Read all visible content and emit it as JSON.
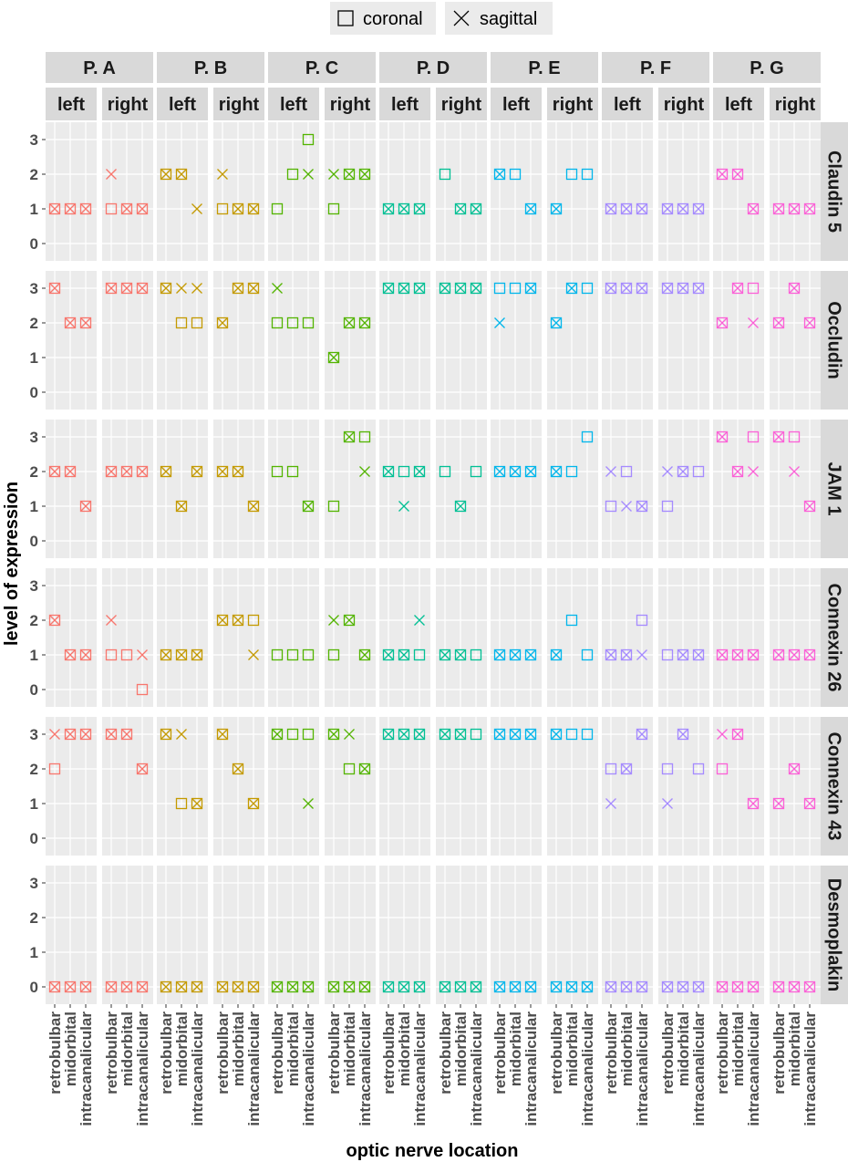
{
  "chart_data": {
    "type": "scatter",
    "xlabel": "optic nerve location",
    "ylabel": "level of expression",
    "x_categories": [
      "retrobulbar",
      "midorbital",
      "intracanalicular"
    ],
    "y_ticks": [
      "0",
      "1",
      "2",
      "3"
    ],
    "ylim": [
      -0.5,
      3.5
    ],
    "legend": {
      "position": "top",
      "items": [
        {
          "key": "coronal",
          "label": "coronal",
          "shape": "square"
        },
        {
          "key": "sagittal",
          "label": "sagittal",
          "shape": "cross"
        }
      ]
    },
    "patients": [
      {
        "label": "P. A",
        "color": "#F8766D"
      },
      {
        "label": "P. B",
        "color": "#C49A00"
      },
      {
        "label": "P. C",
        "color": "#53B400"
      },
      {
        "label": "P. D",
        "color": "#00C094"
      },
      {
        "label": "P. E",
        "color": "#00B6EB"
      },
      {
        "label": "P. F",
        "color": "#A58AFF"
      },
      {
        "label": "P. G",
        "color": "#FB61D7"
      }
    ],
    "sides": [
      "left",
      "right"
    ],
    "proteins": [
      "Claudin 5",
      "Occludin",
      "JAM 1",
      "Connexin 26",
      "Connexin 43",
      "Desmoplakin"
    ],
    "series_note": "values[patient][side] = [coronal by location, sagittal by location]; location order retrobulbar, midorbital, intracanalicular; null = no point",
    "values": {
      "Claudin 5": [
        [
          [
            [
              1,
              1,
              1
            ],
            [
              1,
              1,
              1
            ]
          ],
          [
            [
              1,
              1,
              1
            ],
            [
              2,
              1,
              1
            ]
          ]
        ],
        [
          [
            [
              2,
              2,
              null
            ],
            [
              2,
              2,
              1
            ]
          ],
          [
            [
              1,
              1,
              1
            ],
            [
              2,
              1,
              1
            ]
          ]
        ],
        [
          [
            [
              1,
              2,
              3
            ],
            [
              null,
              null,
              2
            ]
          ],
          [
            [
              1,
              2,
              2
            ],
            [
              2,
              2,
              2
            ]
          ]
        ],
        [
          [
            [
              1,
              1,
              1
            ],
            [
              1,
              1,
              1
            ]
          ],
          [
            [
              2,
              1,
              1
            ],
            [
              null,
              1,
              1
            ]
          ]
        ],
        [
          [
            [
              2,
              2,
              1
            ],
            [
              2,
              null,
              1
            ]
          ],
          [
            [
              1,
              2,
              2
            ],
            [
              1,
              null,
              null
            ]
          ]
        ],
        [
          [
            [
              1,
              1,
              1
            ],
            [
              1,
              1,
              1
            ]
          ],
          [
            [
              1,
              1,
              1
            ],
            [
              1,
              1,
              1
            ]
          ]
        ],
        [
          [
            [
              2,
              2,
              1
            ],
            [
              2,
              2,
              1
            ]
          ],
          [
            [
              1,
              1,
              1
            ],
            [
              1,
              1,
              1
            ]
          ]
        ]
      ],
      "Occludin": [
        [
          [
            [
              3,
              2,
              2
            ],
            [
              3,
              2,
              2
            ]
          ],
          [
            [
              3,
              3,
              3
            ],
            [
              3,
              3,
              3
            ]
          ]
        ],
        [
          [
            [
              3,
              2,
              2
            ],
            [
              3,
              3,
              3
            ]
          ],
          [
            [
              2,
              3,
              3
            ],
            [
              2,
              3,
              3
            ]
          ]
        ],
        [
          [
            [
              2,
              2,
              2
            ],
            [
              3,
              null,
              null
            ]
          ],
          [
            [
              1,
              2,
              2
            ],
            [
              1,
              2,
              2
            ]
          ]
        ],
        [
          [
            [
              3,
              3,
              3
            ],
            [
              3,
              3,
              3
            ]
          ],
          [
            [
              3,
              3,
              3
            ],
            [
              3,
              3,
              3
            ]
          ]
        ],
        [
          [
            [
              3,
              3,
              3
            ],
            [
              2,
              null,
              3
            ]
          ],
          [
            [
              2,
              3,
              3
            ],
            [
              2,
              3,
              null
            ]
          ]
        ],
        [
          [
            [
              3,
              3,
              3
            ],
            [
              3,
              3,
              3
            ]
          ],
          [
            [
              3,
              3,
              3
            ],
            [
              3,
              3,
              3
            ]
          ]
        ],
        [
          [
            [
              2,
              3,
              3
            ],
            [
              2,
              3,
              2
            ]
          ],
          [
            [
              2,
              3,
              2
            ],
            [
              2,
              3,
              2
            ]
          ]
        ]
      ],
      "JAM 1": [
        [
          [
            [
              2,
              2,
              1
            ],
            [
              2,
              2,
              1
            ]
          ],
          [
            [
              2,
              2,
              2
            ],
            [
              2,
              2,
              2
            ]
          ]
        ],
        [
          [
            [
              2,
              1,
              2
            ],
            [
              2,
              1,
              2
            ]
          ],
          [
            [
              2,
              2,
              1
            ],
            [
              2,
              2,
              1
            ]
          ]
        ],
        [
          [
            [
              2,
              2,
              1
            ],
            [
              null,
              null,
              1
            ]
          ],
          [
            [
              1,
              3,
              3
            ],
            [
              null,
              3,
              2
            ]
          ]
        ],
        [
          [
            [
              2,
              2,
              2
            ],
            [
              2,
              1,
              2
            ]
          ],
          [
            [
              2,
              1,
              2
            ],
            [
              null,
              1,
              null
            ]
          ]
        ],
        [
          [
            [
              2,
              2,
              2
            ],
            [
              2,
              2,
              2
            ]
          ],
          [
            [
              2,
              2,
              3
            ],
            [
              2,
              null,
              null
            ]
          ]
        ],
        [
          [
            [
              1,
              2,
              1
            ],
            [
              2,
              1,
              1
            ]
          ],
          [
            [
              1,
              2,
              2
            ],
            [
              2,
              2,
              null
            ]
          ]
        ],
        [
          [
            [
              3,
              2,
              3
            ],
            [
              3,
              2,
              2
            ]
          ],
          [
            [
              3,
              3,
              1
            ],
            [
              3,
              2,
              1
            ]
          ]
        ]
      ],
      "Connexin 26": [
        [
          [
            [
              2,
              1,
              1
            ],
            [
              2,
              1,
              1
            ]
          ],
          [
            [
              1,
              1,
              0
            ],
            [
              2,
              null,
              1
            ]
          ]
        ],
        [
          [
            [
              1,
              1,
              1
            ],
            [
              1,
              1,
              1
            ]
          ],
          [
            [
              2,
              2,
              2
            ],
            [
              2,
              2,
              1
            ]
          ]
        ],
        [
          [
            [
              1,
              1,
              1
            ],
            [
              null,
              null,
              null
            ]
          ],
          [
            [
              1,
              2,
              1
            ],
            [
              2,
              2,
              1
            ]
          ]
        ],
        [
          [
            [
              1,
              1,
              1
            ],
            [
              1,
              1,
              2
            ]
          ],
          [
            [
              1,
              1,
              1
            ],
            [
              1,
              1,
              null
            ]
          ]
        ],
        [
          [
            [
              1,
              1,
              1
            ],
            [
              1,
              1,
              1
            ]
          ],
          [
            [
              1,
              2,
              1
            ],
            [
              1,
              null,
              null
            ]
          ]
        ],
        [
          [
            [
              1,
              1,
              2
            ],
            [
              1,
              1,
              1
            ]
          ],
          [
            [
              1,
              1,
              1
            ],
            [
              null,
              1,
              1
            ]
          ]
        ],
        [
          [
            [
              1,
              1,
              1
            ],
            [
              1,
              1,
              1
            ]
          ],
          [
            [
              1,
              1,
              1
            ],
            [
              1,
              1,
              1
            ]
          ]
        ]
      ],
      "Connexin 43": [
        [
          [
            [
              2,
              3,
              3
            ],
            [
              3,
              3,
              3
            ]
          ],
          [
            [
              3,
              3,
              2
            ],
            [
              3,
              3,
              2
            ]
          ]
        ],
        [
          [
            [
              3,
              1,
              1
            ],
            [
              3,
              3,
              1
            ]
          ],
          [
            [
              3,
              2,
              1
            ],
            [
              3,
              2,
              1
            ]
          ]
        ],
        [
          [
            [
              3,
              3,
              3
            ],
            [
              3,
              null,
              1
            ]
          ],
          [
            [
              3,
              2,
              2
            ],
            [
              3,
              3,
              2
            ]
          ]
        ],
        [
          [
            [
              3,
              3,
              3
            ],
            [
              3,
              3,
              3
            ]
          ],
          [
            [
              3,
              3,
              3
            ],
            [
              3,
              3,
              null
            ]
          ]
        ],
        [
          [
            [
              3,
              3,
              3
            ],
            [
              3,
              3,
              3
            ]
          ],
          [
            [
              3,
              3,
              3
            ],
            [
              3,
              null,
              null
            ]
          ]
        ],
        [
          [
            [
              2,
              2,
              3
            ],
            [
              1,
              2,
              3
            ]
          ],
          [
            [
              2,
              3,
              2
            ],
            [
              1,
              3,
              null
            ]
          ]
        ],
        [
          [
            [
              2,
              3,
              1
            ],
            [
              3,
              3,
              1
            ]
          ],
          [
            [
              1,
              2,
              1
            ],
            [
              1,
              2,
              1
            ]
          ]
        ]
      ],
      "Desmoplakin": [
        [
          [
            [
              0,
              0,
              0
            ],
            [
              0,
              0,
              0
            ]
          ],
          [
            [
              0,
              0,
              0
            ],
            [
              0,
              0,
              0
            ]
          ]
        ],
        [
          [
            [
              0,
              0,
              0
            ],
            [
              0,
              0,
              0
            ]
          ],
          [
            [
              0,
              0,
              0
            ],
            [
              0,
              0,
              0
            ]
          ]
        ],
        [
          [
            [
              0,
              0,
              0
            ],
            [
              0,
              0,
              0
            ]
          ],
          [
            [
              0,
              0,
              0
            ],
            [
              0,
              0,
              0
            ]
          ]
        ],
        [
          [
            [
              0,
              0,
              0
            ],
            [
              0,
              0,
              0
            ]
          ],
          [
            [
              0,
              0,
              0
            ],
            [
              0,
              0,
              0
            ]
          ]
        ],
        [
          [
            [
              0,
              0,
              0
            ],
            [
              0,
              0,
              0
            ]
          ],
          [
            [
              0,
              0,
              0
            ],
            [
              0,
              0,
              0
            ]
          ]
        ],
        [
          [
            [
              0,
              0,
              0
            ],
            [
              0,
              0,
              0
            ]
          ],
          [
            [
              0,
              0,
              0
            ],
            [
              0,
              0,
              0
            ]
          ]
        ],
        [
          [
            [
              0,
              0,
              0
            ],
            [
              0,
              0,
              0
            ]
          ],
          [
            [
              0,
              0,
              0
            ],
            [
              0,
              0,
              0
            ]
          ]
        ]
      ]
    }
  }
}
